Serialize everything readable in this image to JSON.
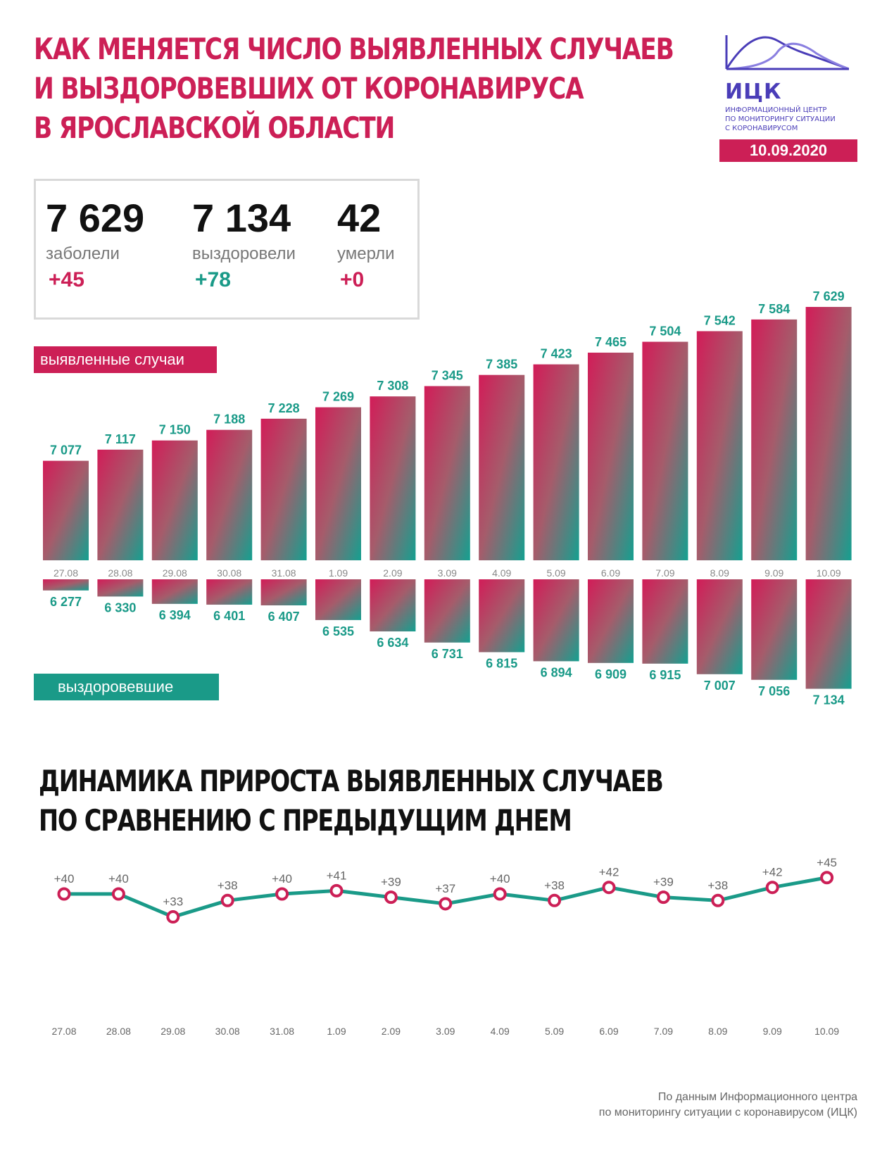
{
  "title": [
    "КАК МЕНЯЕТСЯ ЧИСЛО ВЫЯВЛЕННЫХ СЛУЧАЕВ",
    "И ВЫЗДОРОВЕВШИХ ОТ КОРОНАВИРУСА",
    "В ЯРОСЛАВСКОЙ ОБЛАСТИ"
  ],
  "logo": {
    "name": "ИЦК",
    "subtitle": [
      "ИНФОРМАЦИОННЫЙ ЦЕНТР",
      "ПО МОНИТОРИНГУ СИТУАЦИИ",
      "С КОРОНАВИРУСОМ"
    ],
    "icon": "logo-wave-icon",
    "color": "#4a3db8"
  },
  "date": "10.09.2020",
  "stats": [
    {
      "value": "7 629",
      "label": "заболели",
      "delta": "+45",
      "color": "#cc1f56"
    },
    {
      "value": "7 134",
      "label": "выздоровели",
      "delta": "+78",
      "color": "#1a9a88"
    },
    {
      "value": "42",
      "label": "умерли",
      "delta": "+0",
      "color": "#cc1f56"
    }
  ],
  "legend": {
    "cases": "выявленные случаи",
    "recovered": "выздоровевшие"
  },
  "colors": {
    "pink": "#cc1f56",
    "teal": "#1a9a88",
    "line": "#1a9a88"
  },
  "chart_data": [
    {
      "type": "bar",
      "categories": [
        "27.08",
        "28.08",
        "29.08",
        "30.08",
        "31.08",
        "1.09",
        "2.09",
        "3.09",
        "4.09",
        "5.09",
        "6.09",
        "7.09",
        "8.09",
        "9.09",
        "10.09"
      ],
      "series": [
        {
          "name": "выявленные случаи",
          "values": [
            7077,
            7117,
            7150,
            7188,
            7228,
            7269,
            7308,
            7345,
            7385,
            7423,
            7465,
            7504,
            7542,
            7584,
            7629
          ],
          "labels": [
            "7 077",
            "7 117",
            "7 150",
            "7 188",
            "7 228",
            "7 269",
            "7 308",
            "7 345",
            "7 385",
            "7 423",
            "7 465",
            "7 504",
            "7 542",
            "7 584",
            "7 629"
          ]
        },
        {
          "name": "выздоровевшие",
          "values": [
            6277,
            6330,
            6394,
            6401,
            6407,
            6535,
            6634,
            6731,
            6815,
            6894,
            6909,
            6915,
            7007,
            7056,
            7134
          ],
          "labels": [
            "6 277",
            "6 330",
            "6 394",
            "6 401",
            "6 407",
            "6 535",
            "6 634",
            "6 731",
            "6 815",
            "6 894",
            "6 909",
            "6 915",
            "7 007",
            "7 056",
            "7 134"
          ]
        }
      ],
      "title": "",
      "xlabel": "",
      "ylabel": ""
    },
    {
      "type": "line",
      "title": "ДИНАМИКА ПРИРОСТА ВЫЯВЛЕННЫХ СЛУЧАЕВ ПО СРАВНЕНИЮ С ПРЕДЫДУЩИМ ДНЕМ",
      "title_lines": [
        "ДИНАМИКА ПРИРОСТА ВЫЯВЛЕННЫХ СЛУЧАЕВ",
        "ПО СРАВНЕНИЮ С ПРЕДЫДУЩИМ ДНЕМ"
      ],
      "categories": [
        "27.08",
        "28.08",
        "29.08",
        "30.08",
        "31.08",
        "1.09",
        "2.09",
        "3.09",
        "4.09",
        "5.09",
        "6.09",
        "7.09",
        "8.09",
        "9.09",
        "10.09"
      ],
      "values": [
        40,
        40,
        33,
        38,
        40,
        41,
        39,
        37,
        40,
        38,
        42,
        39,
        38,
        42,
        45
      ],
      "labels": [
        "+40",
        "+40",
        "+33",
        "+38",
        "+40",
        "+41",
        "+39",
        "+37",
        "+40",
        "+38",
        "+42",
        "+39",
        "+38",
        "+42",
        "+45"
      ],
      "xlabel": "",
      "ylabel": ""
    }
  ],
  "footer": [
    "По данным Информационного центра",
    "по мониторингу ситуации с коронавирусом (ИЦК)"
  ]
}
